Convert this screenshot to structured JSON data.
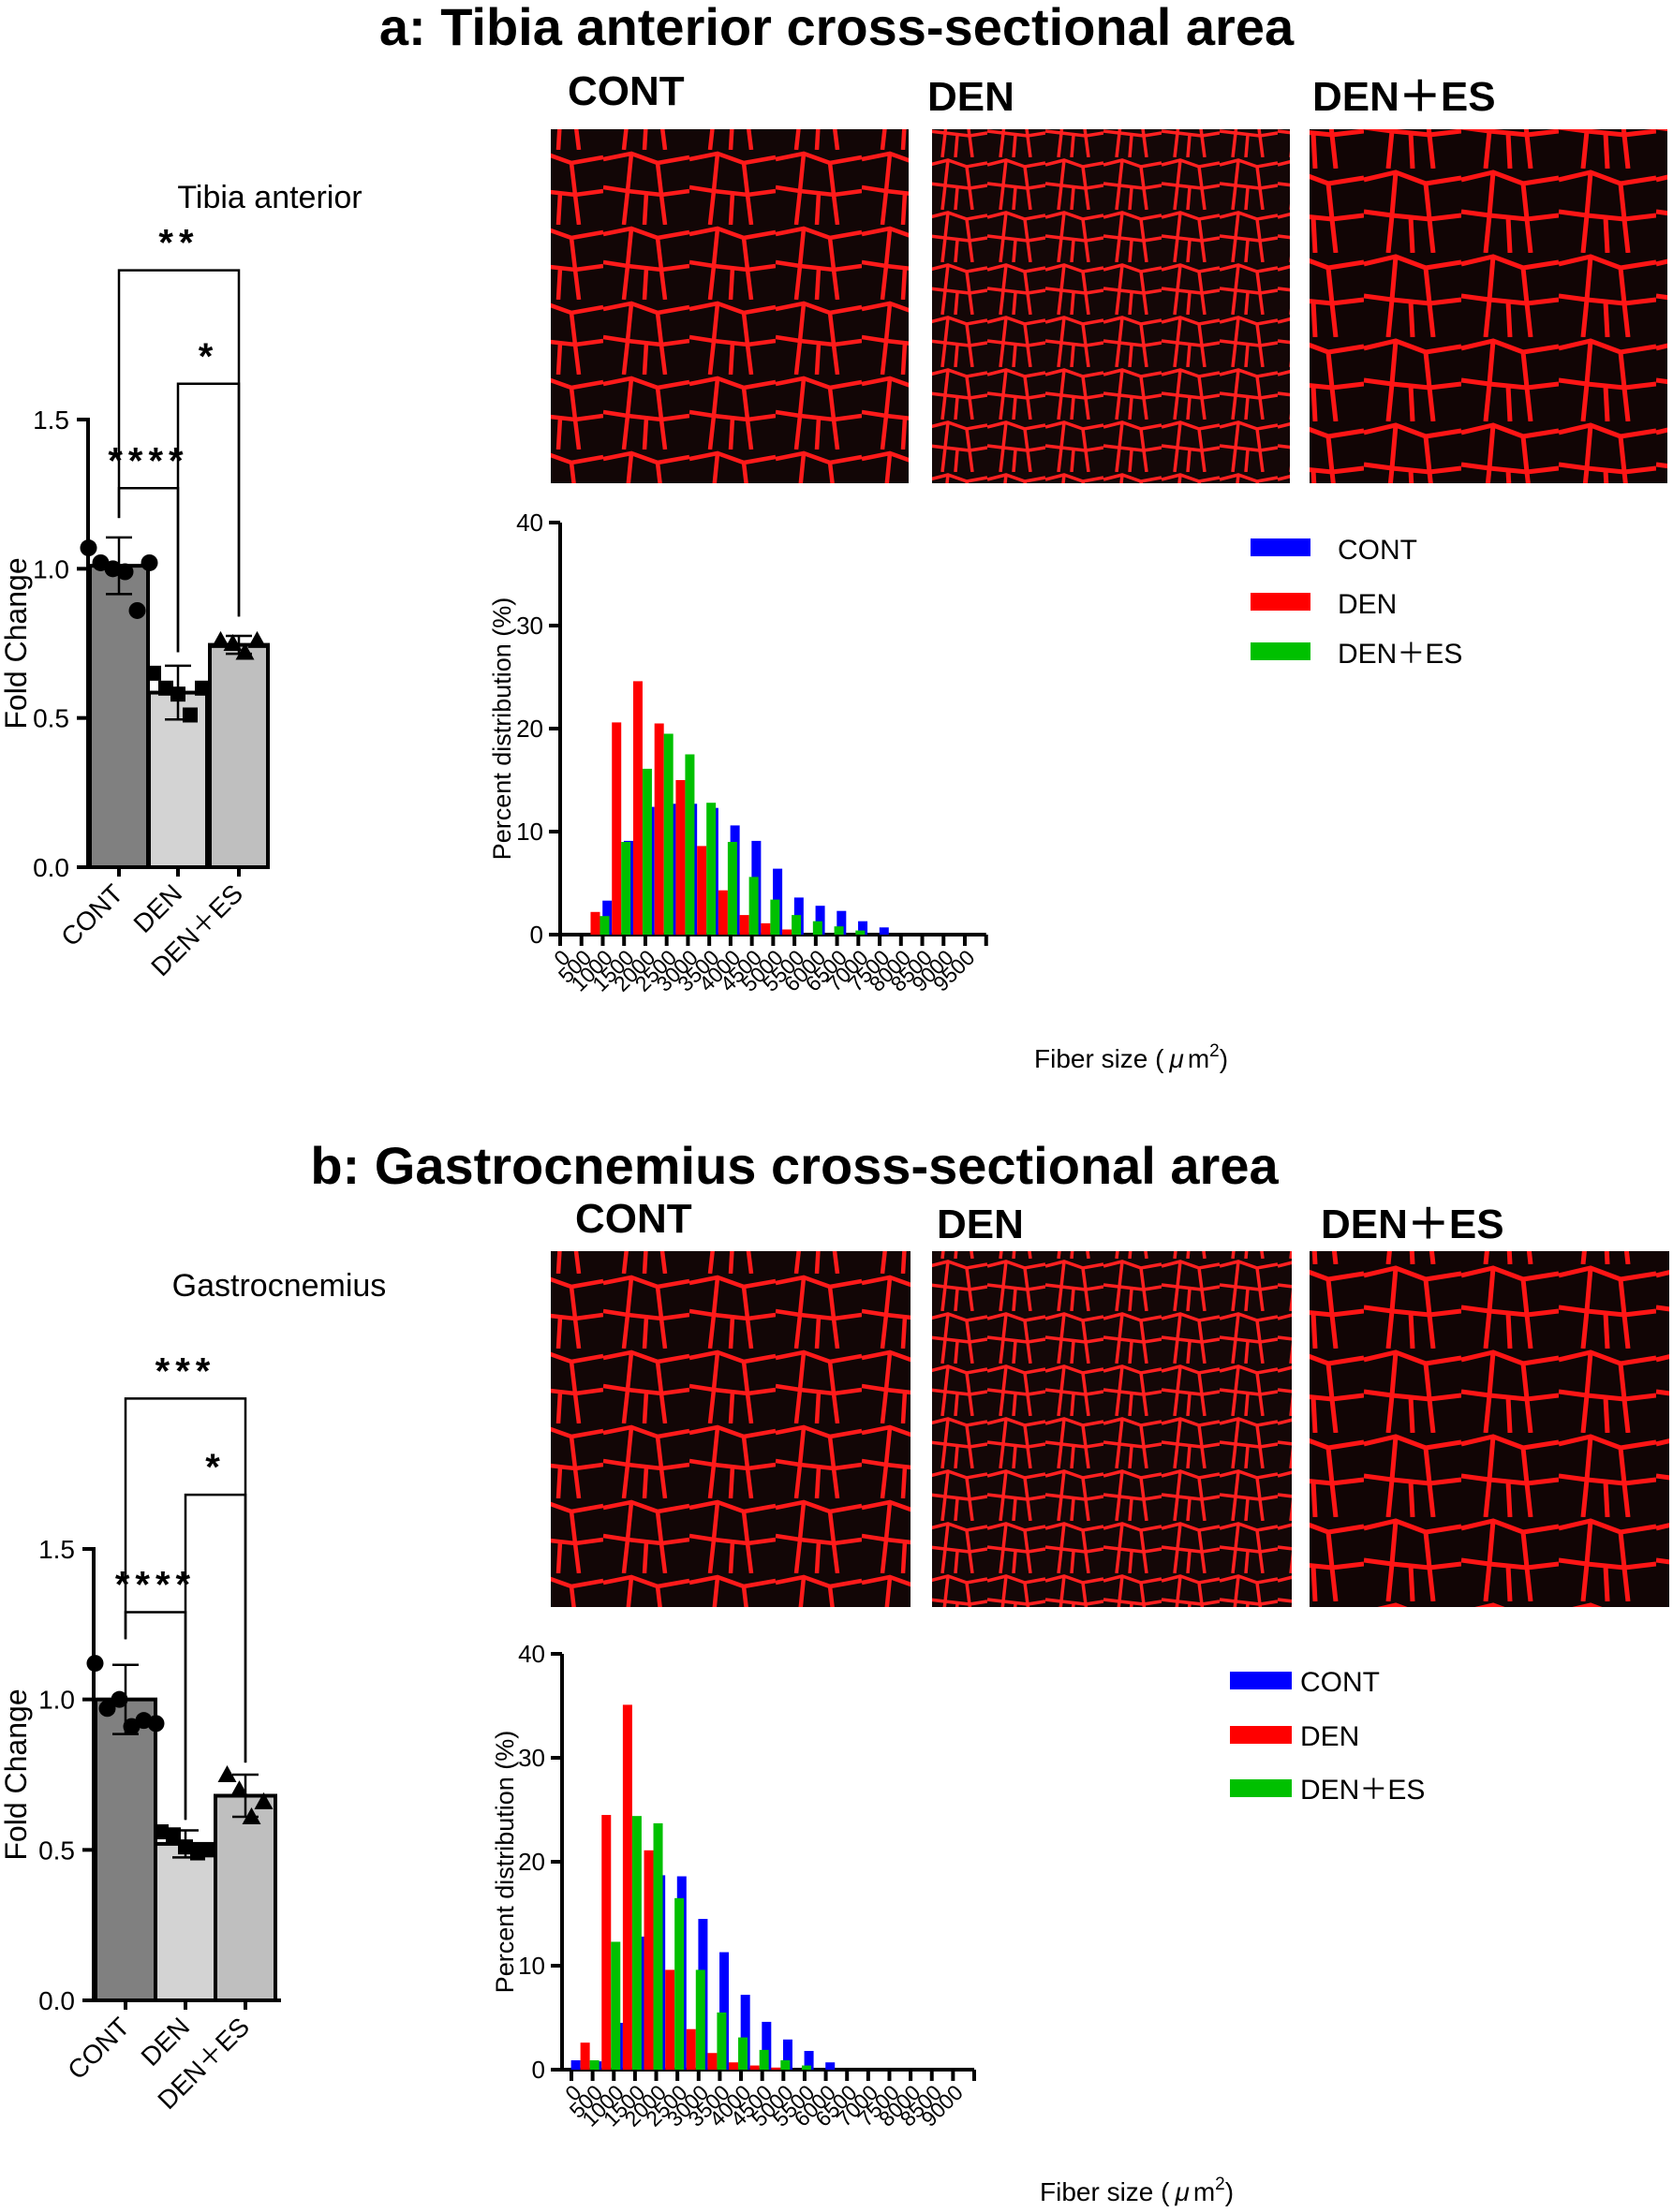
{
  "colors": {
    "cont_bar": "#808080",
    "den_bar": "#d3d3d3",
    "denes_bar": "#bfbfbf",
    "cont_hist": "#0000ff",
    "den_hist": "#ff0000",
    "denes_hist": "#00c000",
    "stain_bg": "#120606",
    "stain_line": "#ff1010"
  },
  "panels": [
    {
      "title": "a: Tibia anterior cross-sectional area",
      "image_labels": [
        "CONT",
        "DEN",
        "DEN＋ES"
      ],
      "bar_title": "Tibia anterior",
      "significance": [
        "**",
        "*",
        "****"
      ],
      "hist_xlabel_main": "Fiber size (",
      "hist_xlabel_mu": "μ",
      "hist_xlabel_unit": "m",
      "hist_xlabel_sup": "2",
      "hist_xlabel_close": ")",
      "legend": [
        "CONT",
        "DEN",
        "DEN＋ES"
      ]
    },
    {
      "title": "b: Gastrocnemius cross-sectional area",
      "image_labels": [
        "CONT",
        "DEN",
        "DEN＋ES"
      ],
      "bar_title": "Gastrocnemius",
      "significance": [
        "***",
        "*",
        "****"
      ],
      "hist_xlabel_main": "Fiber size (",
      "hist_xlabel_mu": "μ",
      "hist_xlabel_unit": "m",
      "hist_xlabel_sup": "2",
      "hist_xlabel_close": ")",
      "legend": [
        "CONT",
        "DEN",
        "DEN＋ES"
      ]
    }
  ],
  "chart_data": [
    {
      "type": "bar",
      "title": "Tibia anterior",
      "ylabel": "Fold Change",
      "categories": [
        "CONT",
        "DEN",
        "DEN＋ES"
      ],
      "values": [
        1.01,
        0.585,
        0.745
      ],
      "errors": [
        0.095,
        0.09,
        0.03
      ],
      "points": [
        [
          1.07,
          1.02,
          1.0,
          0.99,
          0.86,
          1.02
        ],
        [
          0.65,
          0.6,
          0.58,
          0.51,
          0.6
        ],
        [
          0.76,
          0.75,
          0.72,
          0.76
        ]
      ],
      "ylim": [
        0,
        1.5
      ],
      "yticks": [
        "0.0",
        "0.5",
        "1.0",
        "1.5"
      ]
    },
    {
      "type": "bar",
      "title": "Percent distribution",
      "xlabel": "Fiber size (μ m2)",
      "ylabel": "Percent distribution (%)",
      "categories": [
        "0",
        "500",
        "1000",
        "1500",
        "2000",
        "2500",
        "3000",
        "3500",
        "4000",
        "4500",
        "5000",
        "5500",
        "6000",
        "6500",
        "7000",
        "7500",
        "8000",
        "8500",
        "9000",
        "9500"
      ],
      "series": [
        {
          "name": "CONT",
          "values": [
            0,
            0,
            3.3,
            9.1,
            12.4,
            12.7,
            12.7,
            12.3,
            10.6,
            9.1,
            6.4,
            3.6,
            2.8,
            2.3,
            1.3,
            0.7,
            0,
            0,
            0,
            0
          ]
        },
        {
          "name": "DEN",
          "values": [
            0,
            2.2,
            20.6,
            24.6,
            20.5,
            15.0,
            8.6,
            4.3,
            1.9,
            1.1,
            0.5,
            0,
            0,
            0,
            0,
            0,
            0,
            0,
            0,
            0
          ]
        },
        {
          "name": "DEN＋ES",
          "values": [
            0,
            1.8,
            9.0,
            16.1,
            19.5,
            17.5,
            12.8,
            9.0,
            5.6,
            3.4,
            1.9,
            1.3,
            0.8,
            0.4,
            0,
            0,
            0,
            0,
            0,
            0
          ]
        }
      ],
      "ylim": [
        0,
        40
      ],
      "yticks": [
        "0",
        "10",
        "20",
        "30",
        "40"
      ]
    },
    {
      "type": "bar",
      "title": "Gastrocnemius",
      "ylabel": "Fold Change",
      "categories": [
        "CONT",
        "DEN",
        "DEN＋ES"
      ],
      "values": [
        1.0,
        0.52,
        0.68
      ],
      "errors": [
        0.115,
        0.045,
        0.07
      ],
      "points": [
        [
          1.12,
          0.97,
          1.0,
          0.91,
          0.93,
          0.92
        ],
        [
          0.56,
          0.55,
          0.51,
          0.49,
          0.5
        ],
        [
          0.75,
          0.7,
          0.61,
          0.66
        ]
      ],
      "ylim": [
        0,
        1.5
      ],
      "yticks": [
        "0.0",
        "0.5",
        "1.0",
        "1.5"
      ]
    },
    {
      "type": "bar",
      "title": "Percent distribution",
      "xlabel": "Fiber size (μ m2)",
      "ylabel": "Percent distribution (%)",
      "categories": [
        "0",
        "500",
        "1000",
        "1500",
        "2000",
        "2500",
        "3000",
        "3500",
        "4000",
        "4500",
        "5000",
        "5500",
        "6000",
        "6500",
        "7000",
        "7500",
        "8000",
        "8500",
        "9000"
      ],
      "series": [
        {
          "name": "CONT",
          "values": [
            0.9,
            0.8,
            4.5,
            12.8,
            18.7,
            18.6,
            14.5,
            11.3,
            7.2,
            4.6,
            2.9,
            1.8,
            0.7,
            0,
            0,
            0,
            0,
            0,
            0
          ]
        },
        {
          "name": "DEN",
          "values": [
            2.6,
            24.5,
            35.1,
            21.1,
            9.6,
            3.9,
            1.6,
            0.7,
            0.4,
            0.2,
            0,
            0,
            0,
            0,
            0,
            0,
            0,
            0,
            0
          ]
        },
        {
          "name": "DEN＋ES",
          "values": [
            0.9,
            12.3,
            24.4,
            23.7,
            16.5,
            9.6,
            5.5,
            3.1,
            1.9,
            0.9,
            0.4,
            0,
            0,
            0,
            0,
            0,
            0,
            0,
            0
          ]
        }
      ],
      "ylim": [
        0,
        40
      ],
      "yticks": [
        "0",
        "10",
        "20",
        "30",
        "40"
      ]
    }
  ]
}
